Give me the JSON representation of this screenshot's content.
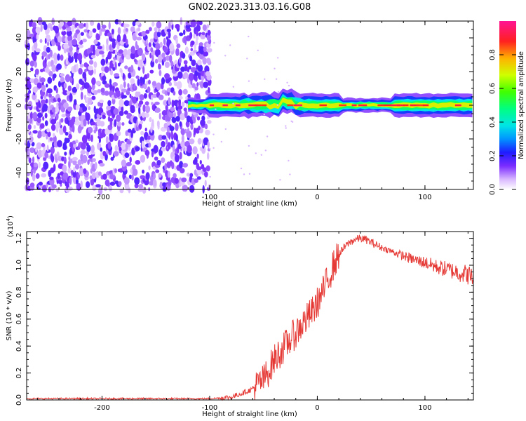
{
  "title": "GN02.2023.313.03.16.G08",
  "chart_data": [
    {
      "type": "heatmap",
      "xlabel": "Height of straight line (km)",
      "ylabel": "Frequency (Hz)",
      "xlim": [
        -270,
        145
      ],
      "ylim": [
        -50,
        50
      ],
      "x_ticks": [
        -200,
        -100,
        0,
        100
      ],
      "y_ticks": [
        -40,
        -20,
        0,
        20,
        40
      ],
      "colorbar": {
        "label": "Normalized spectral amplitude",
        "range": [
          0.0,
          1.0
        ],
        "ticks": [
          0.0,
          0.2,
          0.4,
          0.6,
          0.8
        ]
      },
      "regions": [
        {
          "x_range": [
            -270,
            -100
          ],
          "description": "broadband noise, amplitude 0.1-0.35"
        },
        {
          "x_range": [
            -100,
            145
          ],
          "signal_frequency": 0,
          "signal_amplitude": "0.6-1.0"
        }
      ],
      "grid": false
    },
    {
      "type": "line",
      "xlabel": "Height of straight line (km)",
      "ylabel": "SNR (10 * v/v)",
      "y_multiplier": "(x10",
      "y_multiplier_exp": "4",
      "xlim": [
        -270,
        145
      ],
      "ylim": [
        0,
        1.25
      ],
      "x_ticks": [
        -200,
        -100,
        0,
        100
      ],
      "y_ticks": [
        0.0,
        0.2,
        0.4,
        0.6,
        0.8,
        1.0,
        1.2
      ],
      "series": [
        {
          "color": "#e53935",
          "x": [
            -270,
            -200,
            -150,
            -100,
            -80,
            -70,
            -60,
            -50,
            -45,
            -40,
            -35,
            -30,
            -25,
            -20,
            -15,
            -10,
            -5,
            0,
            5,
            10,
            15,
            20,
            25,
            30,
            35,
            40,
            45,
            50,
            60,
            70,
            80,
            90,
            100,
            110,
            120,
            130,
            140,
            145
          ],
          "values": [
            0.01,
            0.01,
            0.01,
            0.01,
            0.02,
            0.05,
            0.08,
            0.15,
            0.22,
            0.3,
            0.35,
            0.4,
            0.45,
            0.5,
            0.55,
            0.6,
            0.65,
            0.72,
            0.8,
            0.9,
            1.0,
            1.08,
            1.13,
            1.17,
            1.19,
            1.2,
            1.19,
            1.17,
            1.13,
            1.1,
            1.07,
            1.04,
            1.02,
            0.99,
            0.97,
            0.95,
            0.93,
            0.9
          ]
        }
      ],
      "grid": false
    }
  ]
}
